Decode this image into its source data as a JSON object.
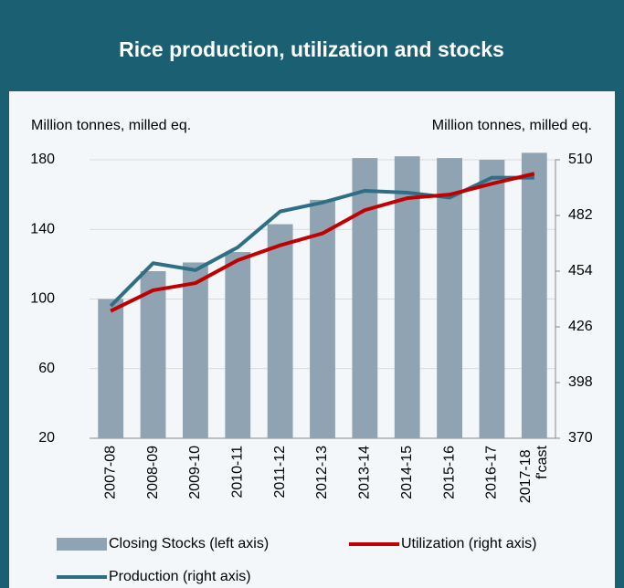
{
  "chart_data": {
    "type": "bar-line",
    "title": "Rice production, utilization and stocks",
    "ylabel": "Million tonnes, milled eq.",
    "y2label": "Million tonnes, milled eq.",
    "categories": [
      "2007-08",
      "2008-09",
      "2009-10",
      "2010-11",
      "2011-12",
      "2012-13",
      "2013-14",
      "2014-15",
      "2015-16",
      "2016-17",
      "2017-18 f'cast"
    ],
    "series": [
      {
        "name": "Closing Stocks (left axis)",
        "type": "bar",
        "axis": "y",
        "color": "#8fa3b3",
        "values": [
          100,
          116,
          121,
          127,
          143,
          157,
          181,
          182,
          181,
          180,
          184
        ]
      },
      {
        "name": "Utilization (right axis)",
        "type": "line",
        "axis": "y2",
        "color": "#c00000",
        "values": [
          434,
          444.4,
          448,
          459.5,
          467,
          473,
          484.7,
          490.7,
          492.5,
          498,
          503
        ]
      },
      {
        "name": "Production (right axis)",
        "type": "line",
        "axis": "y2",
        "color": "#2f6f86",
        "values": [
          436.5,
          458,
          454.5,
          466,
          484,
          488.5,
          494.4,
          493.5,
          491,
          501,
          501
        ]
      }
    ],
    "ylim": [
      20,
      180
    ],
    "yticks": [
      20,
      60,
      100,
      140,
      180
    ],
    "y2lim": [
      370,
      510
    ],
    "y2ticks": [
      370,
      398,
      426,
      454,
      482,
      510
    ],
    "grid": true
  }
}
